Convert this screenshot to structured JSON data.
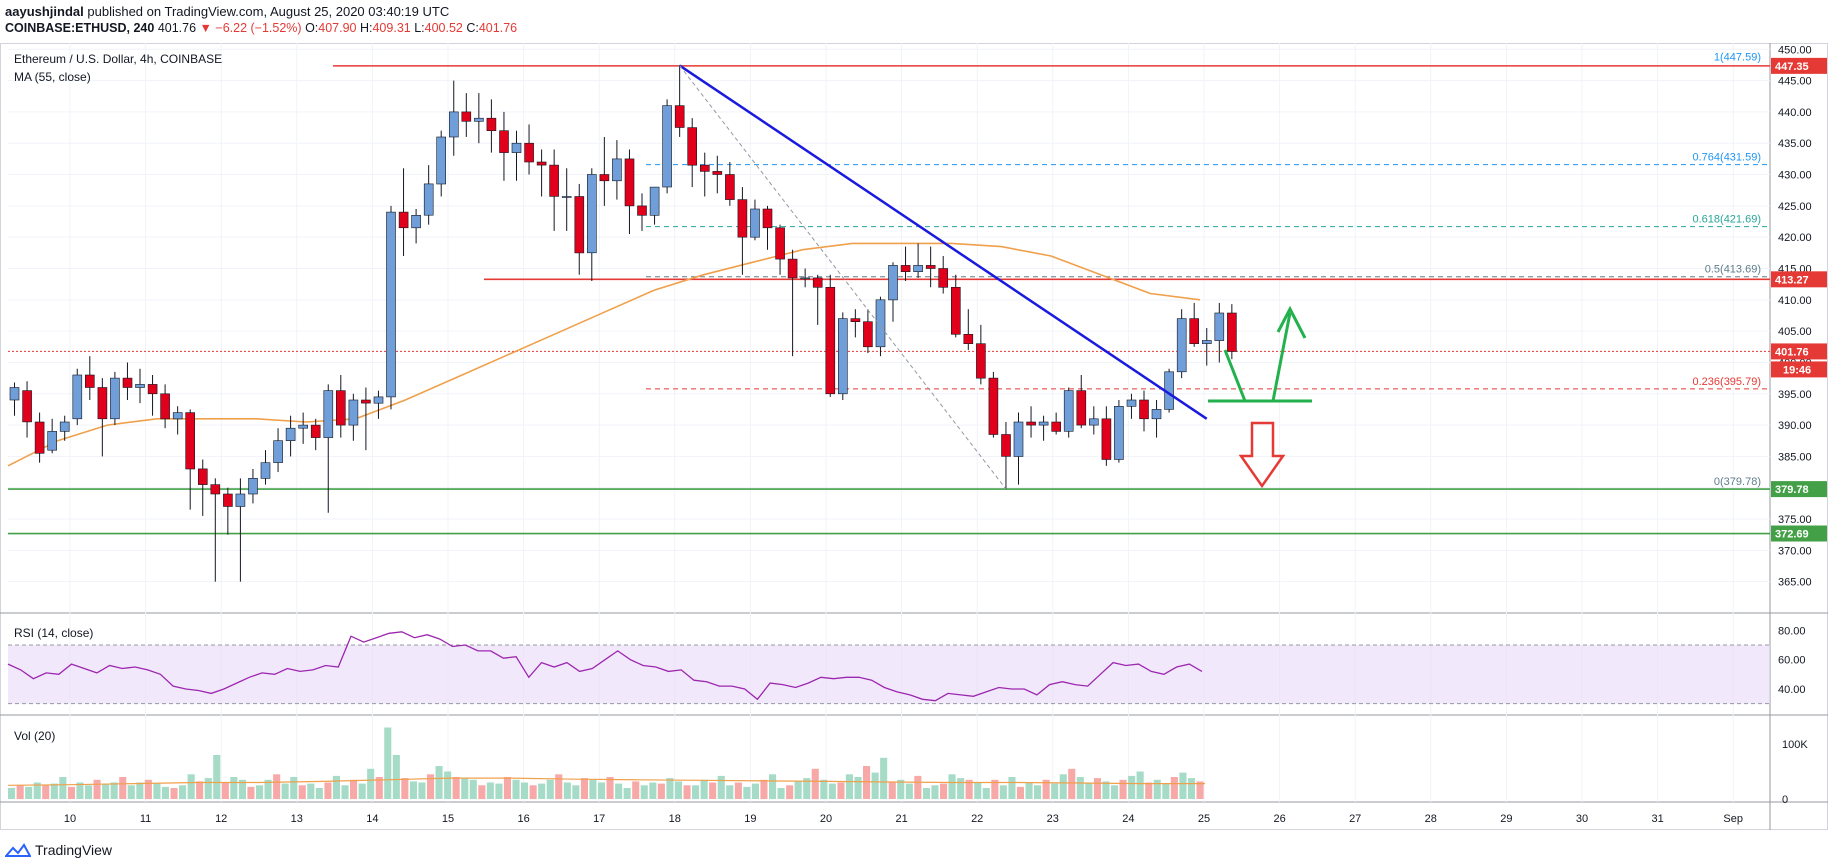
{
  "publish": {
    "author": "aayushjindal",
    "text": "published on TradingView.com, August 25, 2020 03:40:19 UTC"
  },
  "symbol_bar": {
    "symbol": "COINBASE:ETHUSD, 240",
    "last": "401.76",
    "change": "−6.22 (−1.52%)",
    "open_label": "O:",
    "open": "407.90",
    "high_label": "H:",
    "high": "409.31",
    "low_label": "L:",
    "low": "400.52",
    "close_label": "C:",
    "close": "401.76"
  },
  "panes": {
    "main": {
      "title": "Ethereum / U.S. Dollar, 4h, COINBASE",
      "indicator": "MA (55, close)"
    },
    "rsi": {
      "title": "RSI (14, close)"
    },
    "vol": {
      "title": "Vol (20)"
    }
  },
  "footer": {
    "brand": "TradingView"
  },
  "colors": {
    "up": "#6f9ed9",
    "down": "#e0001b",
    "ma": "#f0a04b",
    "trend": "#1a1adf",
    "fib_red": "#e53935",
    "fib_teal": "#26a69a",
    "fib_blue": "#2196f3",
    "green_line": "#43a047",
    "rsi_band": "#ead9f8",
    "rsi_line": "#9c27b0",
    "vol_up": "#a6dcc7",
    "vol_down": "#f7a9a7",
    "vol_ma": "#f0a04b",
    "arrow_green": "#22b14c",
    "arrow_red": "#e53935"
  },
  "chart_data": {
    "type": "candlestick",
    "title": "Ethereum / U.S. Dollar, 4h, COINBASE",
    "timeframe": "4h",
    "x_tick_labels": [
      "10",
      "11",
      "12",
      "13",
      "14",
      "15",
      "16",
      "17",
      "18",
      "19",
      "20",
      "21",
      "22",
      "23",
      "24",
      "25",
      "26",
      "27",
      "28",
      "29",
      "30",
      "31",
      "Sep"
    ],
    "y_tick_labels": [
      365,
      370,
      375,
      380,
      385,
      390,
      395,
      400,
      405,
      410,
      415,
      420,
      425,
      430,
      435,
      440,
      445,
      450
    ],
    "ylim": [
      360,
      451
    ],
    "candles": [
      {
        "o": 394.0,
        "h": 396.8,
        "l": 391.5,
        "c": 396.0
      },
      {
        "o": 395.5,
        "h": 397.0,
        "l": 388.0,
        "c": 390.5
      },
      {
        "o": 390.5,
        "h": 392.0,
        "l": 384.0,
        "c": 385.5
      },
      {
        "o": 386.0,
        "h": 391.0,
        "l": 385.5,
        "c": 389.0
      },
      {
        "o": 389.0,
        "h": 391.5,
        "l": 387.5,
        "c": 390.5
      },
      {
        "o": 391.0,
        "h": 399.0,
        "l": 390.0,
        "c": 398.0
      },
      {
        "o": 398.0,
        "h": 401.0,
        "l": 394.0,
        "c": 396.0
      },
      {
        "o": 396.0,
        "h": 397.5,
        "l": 385.0,
        "c": 391.0
      },
      {
        "o": 391.0,
        "h": 398.5,
        "l": 390.0,
        "c": 397.5
      },
      {
        "o": 397.5,
        "h": 400.0,
        "l": 394.0,
        "c": 396.0
      },
      {
        "o": 396.0,
        "h": 399.0,
        "l": 393.5,
        "c": 396.5
      },
      {
        "o": 396.5,
        "h": 398.0,
        "l": 391.5,
        "c": 395.0
      },
      {
        "o": 395.0,
        "h": 396.5,
        "l": 389.5,
        "c": 391.0
      },
      {
        "o": 391.0,
        "h": 393.0,
        "l": 388.5,
        "c": 392.0
      },
      {
        "o": 392.0,
        "h": 392.5,
        "l": 376.5,
        "c": 383.0
      },
      {
        "o": 383.0,
        "h": 384.5,
        "l": 375.5,
        "c": 380.5
      },
      {
        "o": 380.5,
        "h": 381.5,
        "l": 365.0,
        "c": 379.0
      },
      {
        "o": 379.0,
        "h": 380.0,
        "l": 372.5,
        "c": 377.0
      },
      {
        "o": 377.0,
        "h": 381.5,
        "l": 365.0,
        "c": 379.0
      },
      {
        "o": 379.0,
        "h": 383.0,
        "l": 377.5,
        "c": 381.5
      },
      {
        "o": 381.5,
        "h": 386.0,
        "l": 380.5,
        "c": 384.0
      },
      {
        "o": 384.0,
        "h": 389.5,
        "l": 382.5,
        "c": 387.5
      },
      {
        "o": 387.5,
        "h": 391.5,
        "l": 385.0,
        "c": 389.5
      },
      {
        "o": 389.5,
        "h": 392.0,
        "l": 387.0,
        "c": 390.0
      },
      {
        "o": 390.0,
        "h": 391.0,
        "l": 386.0,
        "c": 388.0
      },
      {
        "o": 388.0,
        "h": 396.5,
        "l": 376.0,
        "c": 395.5
      },
      {
        "o": 395.5,
        "h": 398.0,
        "l": 388.0,
        "c": 390.0
      },
      {
        "o": 390.0,
        "h": 395.0,
        "l": 387.5,
        "c": 394.0
      },
      {
        "o": 394.0,
        "h": 396.0,
        "l": 386.0,
        "c": 393.5
      },
      {
        "o": 393.5,
        "h": 395.5,
        "l": 391.0,
        "c": 394.5
      },
      {
        "o": 394.5,
        "h": 425.0,
        "l": 392.5,
        "c": 424.0
      },
      {
        "o": 424.0,
        "h": 431.0,
        "l": 417.0,
        "c": 421.5
      },
      {
        "o": 421.5,
        "h": 424.5,
        "l": 419.0,
        "c": 423.5
      },
      {
        "o": 423.5,
        "h": 431.5,
        "l": 422.0,
        "c": 428.5
      },
      {
        "o": 428.5,
        "h": 437.0,
        "l": 426.5,
        "c": 436.0
      },
      {
        "o": 436.0,
        "h": 445.0,
        "l": 433.0,
        "c": 440.0
      },
      {
        "o": 440.0,
        "h": 443.0,
        "l": 436.0,
        "c": 438.5
      },
      {
        "o": 438.5,
        "h": 443.0,
        "l": 435.0,
        "c": 439.0
      },
      {
        "o": 439.0,
        "h": 442.0,
        "l": 433.5,
        "c": 437.0
      },
      {
        "o": 437.0,
        "h": 440.0,
        "l": 429.0,
        "c": 433.5
      },
      {
        "o": 433.5,
        "h": 437.0,
        "l": 429.0,
        "c": 435.0
      },
      {
        "o": 435.0,
        "h": 438.0,
        "l": 430.0,
        "c": 432.0
      },
      {
        "o": 432.0,
        "h": 434.0,
        "l": 426.5,
        "c": 431.5
      },
      {
        "o": 431.5,
        "h": 434.0,
        "l": 421.0,
        "c": 426.5
      },
      {
        "o": 426.5,
        "h": 431.0,
        "l": 421.0,
        "c": 426.5
      },
      {
        "o": 426.5,
        "h": 428.5,
        "l": 414.0,
        "c": 417.5
      },
      {
        "o": 417.5,
        "h": 431.0,
        "l": 413.0,
        "c": 430.0
      },
      {
        "o": 430.0,
        "h": 436.0,
        "l": 425.0,
        "c": 429.0
      },
      {
        "o": 429.0,
        "h": 435.5,
        "l": 426.0,
        "c": 432.5
      },
      {
        "o": 432.5,
        "h": 434.0,
        "l": 420.5,
        "c": 425.0
      },
      {
        "o": 425.0,
        "h": 427.0,
        "l": 421.0,
        "c": 423.5
      },
      {
        "o": 423.5,
        "h": 428.0,
        "l": 422.0,
        "c": 428.0
      },
      {
        "o": 428.0,
        "h": 442.0,
        "l": 427.0,
        "c": 441.0
      },
      {
        "o": 441.0,
        "h": 447.5,
        "l": 436.0,
        "c": 437.5
      },
      {
        "o": 437.5,
        "h": 439.0,
        "l": 428.0,
        "c": 431.5
      },
      {
        "o": 431.5,
        "h": 433.5,
        "l": 426.5,
        "c": 430.5
      },
      {
        "o": 430.5,
        "h": 433.0,
        "l": 427.0,
        "c": 430.0
      },
      {
        "o": 430.0,
        "h": 432.0,
        "l": 425.0,
        "c": 426.0
      },
      {
        "o": 426.0,
        "h": 428.0,
        "l": 414.0,
        "c": 420.0
      },
      {
        "o": 420.0,
        "h": 426.0,
        "l": 419.5,
        "c": 424.5
      },
      {
        "o": 424.5,
        "h": 425.0,
        "l": 418.0,
        "c": 421.5
      },
      {
        "o": 421.5,
        "h": 422.0,
        "l": 414.0,
        "c": 416.5
      },
      {
        "o": 416.5,
        "h": 418.0,
        "l": 401.0,
        "c": 413.5
      },
      {
        "o": 413.5,
        "h": 415.0,
        "l": 412.0,
        "c": 413.5
      },
      {
        "o": 413.5,
        "h": 414.0,
        "l": 406.0,
        "c": 412.0
      },
      {
        "o": 412.0,
        "h": 414.0,
        "l": 394.5,
        "c": 395.0
      },
      {
        "o": 395.0,
        "h": 408.0,
        "l": 394.0,
        "c": 407.0
      },
      {
        "o": 407.0,
        "h": 408.5,
        "l": 404.0,
        "c": 406.5
      },
      {
        "o": 406.5,
        "h": 408.5,
        "l": 401.5,
        "c": 402.5
      },
      {
        "o": 402.5,
        "h": 410.5,
        "l": 401.0,
        "c": 410.0
      },
      {
        "o": 410.0,
        "h": 416.0,
        "l": 406.5,
        "c": 415.5
      },
      {
        "o": 415.5,
        "h": 418.5,
        "l": 413.0,
        "c": 414.5
      },
      {
        "o": 414.5,
        "h": 419.0,
        "l": 413.5,
        "c": 415.5
      },
      {
        "o": 415.5,
        "h": 418.5,
        "l": 412.0,
        "c": 415.0
      },
      {
        "o": 415.0,
        "h": 417.0,
        "l": 411.0,
        "c": 412.0
      },
      {
        "o": 412.0,
        "h": 414.0,
        "l": 404.0,
        "c": 404.5
      },
      {
        "o": 404.5,
        "h": 408.5,
        "l": 402.0,
        "c": 403.0
      },
      {
        "o": 403.0,
        "h": 406.0,
        "l": 396.5,
        "c": 397.5
      },
      {
        "o": 397.5,
        "h": 398.5,
        "l": 388.0,
        "c": 388.5
      },
      {
        "o": 388.5,
        "h": 390.5,
        "l": 379.78,
        "c": 385.0
      },
      {
        "o": 385.0,
        "h": 392.0,
        "l": 380.5,
        "c": 390.5
      },
      {
        "o": 390.5,
        "h": 393.0,
        "l": 388.0,
        "c": 390.0
      },
      {
        "o": 390.0,
        "h": 391.5,
        "l": 387.5,
        "c": 390.5
      },
      {
        "o": 390.5,
        "h": 392.0,
        "l": 388.5,
        "c": 389.0
      },
      {
        "o": 389.0,
        "h": 396.0,
        "l": 388.0,
        "c": 395.5
      },
      {
        "o": 395.5,
        "h": 398.0,
        "l": 389.5,
        "c": 390.0
      },
      {
        "o": 390.0,
        "h": 393.0,
        "l": 388.5,
        "c": 391.0
      },
      {
        "o": 391.0,
        "h": 393.0,
        "l": 383.5,
        "c": 384.5
      },
      {
        "o": 384.5,
        "h": 394.0,
        "l": 384.0,
        "c": 393.0
      },
      {
        "o": 393.0,
        "h": 395.0,
        "l": 391.0,
        "c": 394.0
      },
      {
        "o": 394.0,
        "h": 395.5,
        "l": 389.0,
        "c": 391.0
      },
      {
        "o": 391.0,
        "h": 394.0,
        "l": 388.0,
        "c": 392.5
      },
      {
        "o": 392.5,
        "h": 399.0,
        "l": 392.0,
        "c": 398.5
      },
      {
        "o": 398.5,
        "h": 408.5,
        "l": 397.5,
        "c": 407.0
      },
      {
        "o": 407.0,
        "h": 409.5,
        "l": 402.5,
        "c": 403.0
      },
      {
        "o": 403.0,
        "h": 405.5,
        "l": 399.5,
        "c": 403.5
      },
      {
        "o": 403.5,
        "h": 409.5,
        "l": 400.0,
        "c": 407.9
      },
      {
        "o": 407.9,
        "h": 409.31,
        "l": 400.52,
        "c": 401.76
      }
    ],
    "ma55": {
      "name": "MA (55, close)",
      "values": [
        383.5,
        387.5,
        390.0,
        391.0,
        391.0,
        391.0,
        390.5,
        391.0,
        394.0,
        397.5,
        401.0,
        404.5,
        408.0,
        411.5,
        414.0,
        416.0,
        418.0,
        419.0,
        419.0,
        419.0,
        418.5,
        417.0,
        414.0,
        411.0,
        410.0
      ]
    },
    "rsi": {
      "name": "RSI (14, close)",
      "y_tick_labels": [
        40.0,
        60.0,
        80.0
      ],
      "band": [
        30,
        70
      ],
      "values": [
        57,
        53,
        47,
        51,
        50,
        57,
        54,
        51,
        56,
        54,
        55,
        53,
        50,
        42,
        40,
        39,
        37,
        40,
        44,
        48,
        51,
        50,
        54,
        52,
        53,
        56,
        55,
        76,
        72,
        75,
        78,
        79,
        75,
        77,
        74,
        69,
        70,
        66,
        66,
        61,
        62,
        48,
        58,
        55,
        58,
        52,
        54,
        60,
        66,
        60,
        56,
        55,
        52,
        53,
        46,
        45,
        42,
        42,
        40,
        33,
        44,
        43,
        41,
        44,
        48,
        47,
        48,
        48,
        46,
        41,
        38,
        36,
        33,
        32,
        37,
        36,
        35,
        38,
        41,
        40,
        40,
        36,
        43,
        45,
        43,
        42,
        50,
        58,
        56,
        57,
        52,
        50,
        55,
        57,
        52
      ]
    },
    "volume": {
      "name": "Vol (20)",
      "y_tick_labels": [
        "0",
        "100K"
      ],
      "max": 140,
      "values": [
        20,
        25,
        22,
        30,
        25,
        28,
        40,
        22,
        30,
        25,
        35,
        28,
        30,
        40,
        25,
        30,
        35,
        28,
        22,
        20,
        25,
        45,
        32,
        38,
        80,
        30,
        40,
        35,
        22,
        25,
        35,
        45,
        28,
        40,
        25,
        28,
        20,
        30,
        42,
        25,
        35,
        28,
        55,
        40,
        130,
        80,
        38,
        32,
        30,
        45,
        60,
        50,
        40,
        38,
        35,
        25,
        30,
        28,
        40,
        35,
        30,
        25,
        28,
        35,
        45,
        30,
        25,
        38,
        35,
        30,
        40,
        28,
        20,
        32,
        25,
        30,
        28,
        38,
        32,
        25,
        25,
        35,
        30,
        42,
        25,
        30,
        22,
        28,
        35,
        45,
        20,
        25,
        32,
        38,
        55,
        35,
        28,
        30,
        45,
        40,
        60,
        48,
        75,
        30,
        35,
        28,
        42,
        20,
        25,
        28,
        45,
        38,
        35,
        30,
        20,
        35,
        25,
        40,
        22,
        30,
        25,
        35,
        28,
        45,
        55,
        40,
        30,
        38,
        32,
        25,
        35,
        42,
        50,
        30,
        35,
        28,
        40,
        48,
        38,
        32
      ],
      "ma": [
        25,
        26,
        28,
        30,
        30,
        32,
        35,
        38,
        38,
        36,
        35,
        34,
        33,
        32,
        31,
        30,
        30,
        29,
        28,
        28
      ]
    },
    "annotations": {
      "horizontal_levels": [
        {
          "value": 447.35,
          "label": "447.35",
          "color": "#e53935"
        },
        {
          "value": 413.27,
          "label": "413.27",
          "color": "#e53935"
        },
        {
          "value": 401.76,
          "label": "401.76",
          "color": "#e53935",
          "dotted": true
        },
        {
          "value": 379.78,
          "label": "379.78",
          "color": "#43a047"
        },
        {
          "value": 372.69,
          "label": "372.69",
          "color": "#43a047"
        }
      ],
      "countdown": "19:46",
      "fibonacci": [
        {
          "label": "1(447.59)",
          "value": 447.59,
          "color": "#2196f3"
        },
        {
          "label": "0.764(431.59)",
          "value": 431.59,
          "color": "#2196f3"
        },
        {
          "label": "0.618(421.69)",
          "value": 421.69,
          "color": "#26a69a"
        },
        {
          "label": "0.5(413.69)",
          "value": 413.69,
          "color": "#607d8b"
        },
        {
          "label": "0.236(395.79)",
          "value": 395.79,
          "color": "#e53935"
        },
        {
          "label": "0(379.78)",
          "value": 379.78,
          "color": "#607d8b"
        }
      ],
      "trendline": {
        "from": [
          53,
          447.4
        ],
        "to": [
          95,
          391.0
        ]
      },
      "fib_diagonal": {
        "from": [
          53,
          447.4
        ],
        "to": [
          79,
          379.8
        ]
      }
    }
  }
}
